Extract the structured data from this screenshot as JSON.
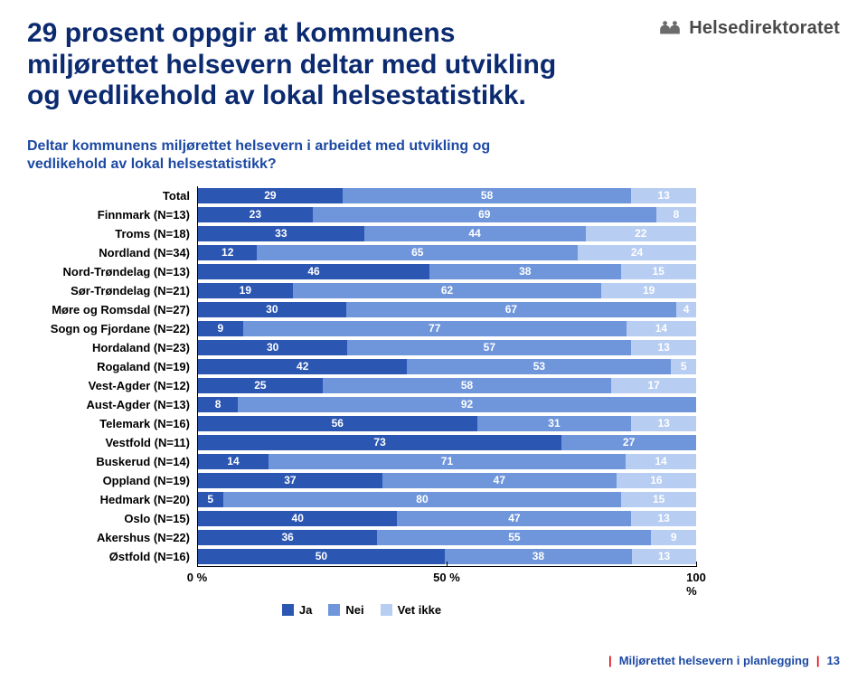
{
  "title": "29 prosent oppgir at kommunens miljørettet helsevern deltar med utvikling og vedlikehold av lokal helsestatistikk.",
  "subtitle": "Deltar kommunens miljørettet helsevern i arbeidet med utvikling og vedlikehold av lokal helsestatistikk?",
  "logo_text": "Helsedirektoratet",
  "footer_text": "Miljørettet helsevern i planlegging",
  "footer_page": "13",
  "chart": {
    "type": "stacked-horizontal-bar",
    "series_colors": [
      "#2b56b2",
      "#6f96db",
      "#b7cdf1"
    ],
    "value_label_color": "#ffffff",
    "value_fontsize": 12,
    "label_fontsize": 13,
    "legend": [
      "Ja",
      "Nei",
      "Vet ikke"
    ],
    "xticks": [
      0,
      50,
      100
    ],
    "xtick_labels": [
      "0 %",
      "50 %",
      "100 %"
    ],
    "rows": [
      {
        "label": "Total",
        "values": [
          29,
          58,
          13
        ]
      },
      {
        "label": "Finnmark (N=13)",
        "values": [
          23,
          69,
          8
        ]
      },
      {
        "label": "Troms (N=18)",
        "values": [
          33,
          44,
          22
        ]
      },
      {
        "label": "Nordland (N=34)",
        "values": [
          12,
          65,
          24
        ]
      },
      {
        "label": "Nord-Trøndelag (N=13)",
        "values": [
          46,
          38,
          15
        ]
      },
      {
        "label": "Sør-Trøndelag (N=21)",
        "values": [
          19,
          62,
          19
        ]
      },
      {
        "label": "Møre og Romsdal (N=27)",
        "values": [
          30,
          67,
          4
        ]
      },
      {
        "label": "Sogn og Fjordane (N=22)",
        "values": [
          9,
          77,
          14
        ]
      },
      {
        "label": "Hordaland (N=23)",
        "values": [
          30,
          57,
          13
        ]
      },
      {
        "label": "Rogaland (N=19)",
        "values": [
          42,
          53,
          5
        ]
      },
      {
        "label": "Vest-Agder (N=12)",
        "values": [
          25,
          58,
          17
        ]
      },
      {
        "label": "Aust-Agder (N=13)",
        "values": [
          8,
          92,
          0
        ]
      },
      {
        "label": "Telemark (N=16)",
        "values": [
          56,
          31,
          13
        ]
      },
      {
        "label": "Vestfold (N=11)",
        "values": [
          73,
          27,
          0
        ]
      },
      {
        "label": "Buskerud (N=14)",
        "values": [
          14,
          71,
          14
        ]
      },
      {
        "label": "Oppland (N=19)",
        "values": [
          37,
          47,
          16
        ]
      },
      {
        "label": "Hedmark (N=20)",
        "values": [
          5,
          80,
          15
        ]
      },
      {
        "label": "Oslo (N=15)",
        "values": [
          40,
          47,
          13
        ]
      },
      {
        "label": "Akershus (N=22)",
        "values": [
          36,
          55,
          9
        ]
      },
      {
        "label": "Østfold (N=16)",
        "values": [
          50,
          38,
          13
        ]
      }
    ]
  }
}
